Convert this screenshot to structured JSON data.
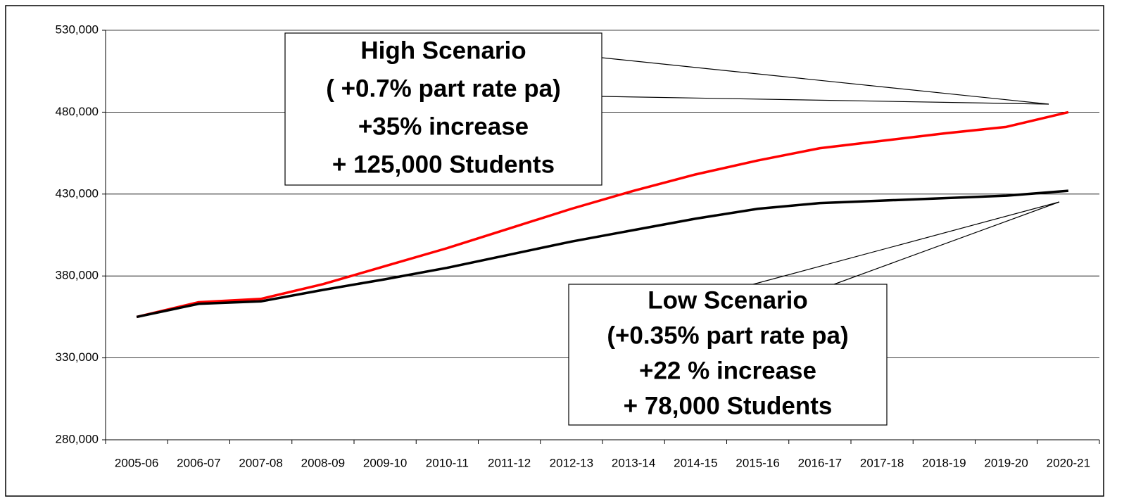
{
  "chart_data": {
    "type": "line",
    "categories": [
      "2005-06",
      "2006-07",
      "2007-08",
      "2008-09",
      "2009-10",
      "2010-11",
      "2011-12",
      "2012-13",
      "2013-14",
      "2014-15",
      "2015-16",
      "2016-17",
      "2017-18",
      "2018-19",
      "2019-20",
      "2020-21"
    ],
    "series": [
      {
        "color": "#ff0000",
        "values": [
          355000,
          364000,
          366000,
          375000,
          386000,
          397000,
          409000,
          421000,
          432000,
          442000,
          450500,
          458000,
          462500,
          467000,
          471000,
          480000
        ]
      },
      {
        "color": "#000000",
        "values": [
          355000,
          363000,
          364500,
          371500,
          378000,
          385000,
          393000,
          401000,
          408000,
          415000,
          421000,
          424500,
          426000,
          427500,
          429000,
          432000
        ]
      }
    ],
    "ylim": [
      280000,
      530000
    ],
    "yticks": [
      {
        "value": 280000,
        "label": "280,000"
      },
      {
        "value": 330000,
        "label": "330,000"
      },
      {
        "value": 380000,
        "label": "380,000"
      },
      {
        "value": 430000,
        "label": "430,000"
      },
      {
        "value": 480000,
        "label": "480,000"
      },
      {
        "value": 530000,
        "label": "530,000"
      }
    ],
    "grid": true,
    "annotations": [
      {
        "lines": [
          "High Scenario",
          "( +0.7% part rate pa)",
          "+35% increase",
          "+ 125,000 Students"
        ]
      },
      {
        "lines": [
          "Low Scenario",
          "(+0.35% part rate pa)",
          "+22 % increase",
          "+ 78,000 Students"
        ]
      }
    ]
  }
}
